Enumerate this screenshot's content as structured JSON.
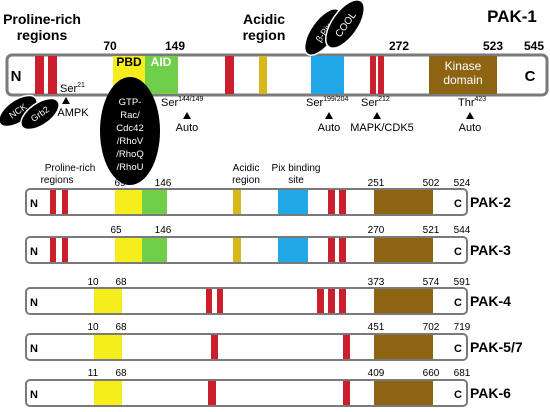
{
  "colors": {
    "red": "#cc1f2e",
    "yellow": "#f5ee1c",
    "green": "#6fcf4a",
    "blue": "#1fa7e8",
    "brown": "#8c6412",
    "mustard": "#d6b81c",
    "black": "#000000",
    "bar_border": "#7a7a7a"
  },
  "pak1": {
    "title": "PAK-1",
    "n": "N",
    "c": "C",
    "label_proline": [
      "Proline-rich",
      "regions"
    ],
    "label_acidic": [
      "Acidic",
      "region"
    ],
    "pbd": "PBD",
    "aid": "AID",
    "kinase": [
      "Kinase",
      "domain"
    ],
    "numbers": [
      "70",
      "149",
      "272",
      "523",
      "545"
    ],
    "ellipse_nck": "NCK",
    "ellipse_grb2": "Grb2",
    "ellipse_bpix": "β-Pix",
    "ellipse_cool": "COOL",
    "gtp_lines": [
      "GTP-",
      "Rac/",
      "Cdc42",
      "/RhoV",
      "/RhoQ",
      "/RhoU"
    ],
    "sites": [
      {
        "top": "Ser",
        "sup": "21",
        "bottom": "AMPK"
      },
      {
        "top": "Ser",
        "sup": "144/149",
        "bottom": "Auto"
      },
      {
        "top": "Ser",
        "sup": "199/204",
        "bottom": "Auto"
      },
      {
        "top": "Ser",
        "sup": "212",
        "bottom": "MAPK/CDK5"
      },
      {
        "top": "Thr",
        "sup": "423",
        "bottom": "Auto"
      }
    ]
  },
  "header2": {
    "proline": [
      "Proline-rich",
      "regions"
    ],
    "acidic": [
      "Acidic",
      "region"
    ],
    "pix": [
      "Pix binding",
      "site"
    ]
  },
  "paks": [
    {
      "name": "PAK-2",
      "numbers": [
        "69",
        "146",
        "251",
        "502",
        "524"
      ]
    },
    {
      "name": "PAK-3",
      "numbers": [
        "65",
        "146",
        "270",
        "521",
        "544"
      ]
    },
    {
      "name": "PAK-4",
      "numbers": [
        "10",
        "68",
        "373",
        "574",
        "591"
      ]
    },
    {
      "name": "PAK-5/7",
      "numbers": [
        "10",
        "68",
        "451",
        "702",
        "719"
      ]
    },
    {
      "name": "PAK-6",
      "numbers": [
        "11",
        "68",
        "409",
        "660",
        "681"
      ]
    }
  ],
  "n_label": "N",
  "c_label": "C"
}
